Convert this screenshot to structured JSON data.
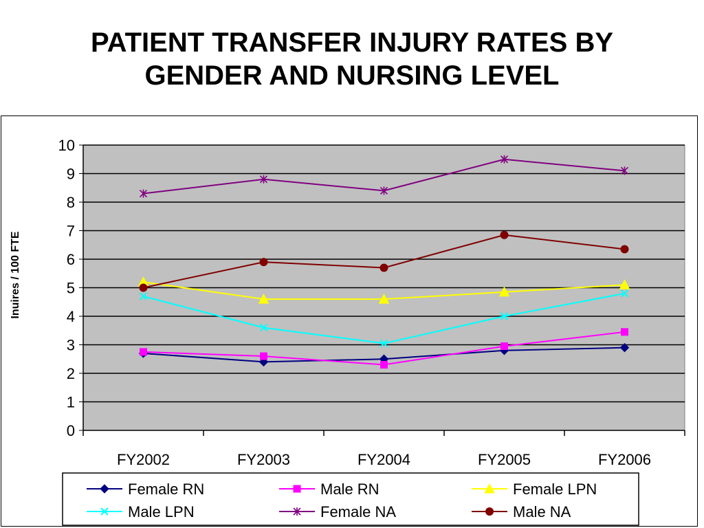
{
  "title_line1": "PATIENT TRANSFER INJURY RATES BY",
  "title_line2": "GENDER AND NURSING LEVEL",
  "chart_data": {
    "type": "line",
    "title": "PATIENT TRANSFER INJURY RATES BY GENDER AND NURSING LEVEL",
    "xlabel": "",
    "ylabel": "Inuires / 100 FTE",
    "ylim": [
      0,
      10
    ],
    "yticks": [
      "0",
      "1",
      "2",
      "3",
      "4",
      "5",
      "6",
      "7",
      "8",
      "9",
      "10"
    ],
    "grid": true,
    "legend_position": "bottom",
    "plot_background": "#c0c0c0",
    "categories": [
      "FY2002",
      "FY2003",
      "FY2004",
      "FY2005",
      "FY2006"
    ],
    "series": [
      {
        "name": "Female RN",
        "color": "#000080",
        "marker": "diamond",
        "values": [
          2.7,
          2.4,
          2.5,
          2.8,
          2.9
        ]
      },
      {
        "name": "Male RN",
        "color": "#ff00ff",
        "marker": "square",
        "values": [
          2.75,
          2.6,
          2.3,
          2.95,
          3.45
        ]
      },
      {
        "name": "Female LPN",
        "color": "#ffff00",
        "marker": "triangle",
        "values": [
          5.2,
          4.6,
          4.6,
          4.85,
          5.1
        ]
      },
      {
        "name": "Male LPN",
        "color": "#00ffff",
        "marker": "x",
        "values": [
          4.7,
          3.6,
          3.05,
          4.0,
          4.8
        ]
      },
      {
        "name": "Female NA",
        "color": "#800080",
        "marker": "star",
        "values": [
          8.3,
          8.8,
          8.4,
          9.5,
          9.1
        ]
      },
      {
        "name": "Male NA",
        "color": "#800000",
        "marker": "circle",
        "values": [
          5.0,
          5.9,
          5.7,
          6.85,
          6.35
        ]
      }
    ]
  }
}
